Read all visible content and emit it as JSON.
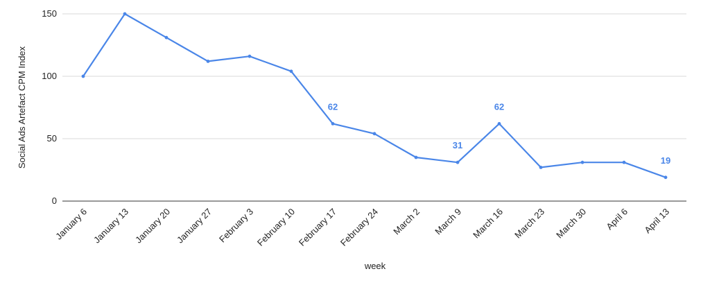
{
  "chart_data": {
    "type": "line",
    "title": "",
    "xlabel": "week",
    "ylabel": "Social Ads Artefact CPM Index",
    "ylim": [
      0,
      150
    ],
    "yticks": [
      0,
      50,
      100,
      150
    ],
    "grid": true,
    "legend": "none",
    "line_color": "#4a86e8",
    "categories": [
      "January 6",
      "January 13",
      "January 20",
      "January 27",
      "February 3",
      "February 10",
      "February 17",
      "February 24",
      "March 2",
      "March 9",
      "March 16",
      "March 23",
      "March 30",
      "April 6",
      "April 13"
    ],
    "series": [
      {
        "values": [
          100,
          150,
          131,
          112,
          116,
          104,
          62,
          54,
          35,
          31,
          62,
          27,
          31,
          31,
          19
        ]
      }
    ],
    "annotations": [
      {
        "category": "February 17",
        "value": 62,
        "text": "62"
      },
      {
        "category": "March 9",
        "value": 31,
        "text": "31"
      },
      {
        "category": "March 16",
        "value": 62,
        "text": "62"
      },
      {
        "category": "April 13",
        "value": 19,
        "text": "19"
      }
    ]
  }
}
